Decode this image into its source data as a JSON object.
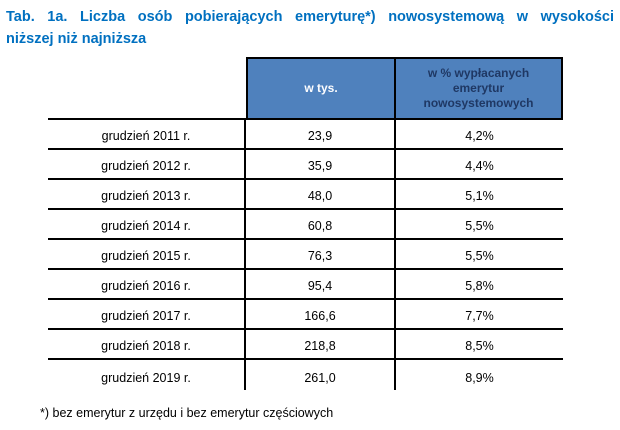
{
  "title": {
    "line1": "Tab. 1a. Liczba osób pobierających emeryturę*) nowosystemową w wysokości",
    "line2": "niższej niż najniższa"
  },
  "table": {
    "columns": [
      {
        "header": ""
      },
      {
        "header": "w tys."
      },
      {
        "header": "w % wypłacanych emerytur nowosystemowych"
      }
    ],
    "rows": [
      {
        "period": "grudzień 2011 r.",
        "thousands": "23,9",
        "percent": "4,2%"
      },
      {
        "period": "grudzień 2012 r.",
        "thousands": "35,9",
        "percent": "4,4%"
      },
      {
        "period": "grudzień 2013 r.",
        "thousands": "48,0",
        "percent": "5,1%"
      },
      {
        "period": "grudzień 2014 r.",
        "thousands": "60,8",
        "percent": "5,5%"
      },
      {
        "period": "grudzień 2015 r.",
        "thousands": "76,3",
        "percent": "5,5%"
      },
      {
        "period": "grudzień 2016 r.",
        "thousands": "95,4",
        "percent": "5,8%"
      },
      {
        "period": "grudzień 2017 r.",
        "thousands": "166,6",
        "percent": "7,7%"
      },
      {
        "period": "grudzień 2018 r.",
        "thousands": "218,8",
        "percent": "8,5%"
      },
      {
        "period": "grudzień 2019 r.",
        "thousands": "261,0",
        "percent": "8,9%"
      }
    ]
  },
  "footnote": "*) bez emerytur z urzędu i bez emerytur częściowych",
  "colors": {
    "title_text": "#0070C0",
    "header_fill": "#4F81BD",
    "header_text_light": "#FDFDFF",
    "header_text_dark": "#1F3864",
    "border": "#000000",
    "body_text": "#000000",
    "background": "#FFFFFF"
  }
}
